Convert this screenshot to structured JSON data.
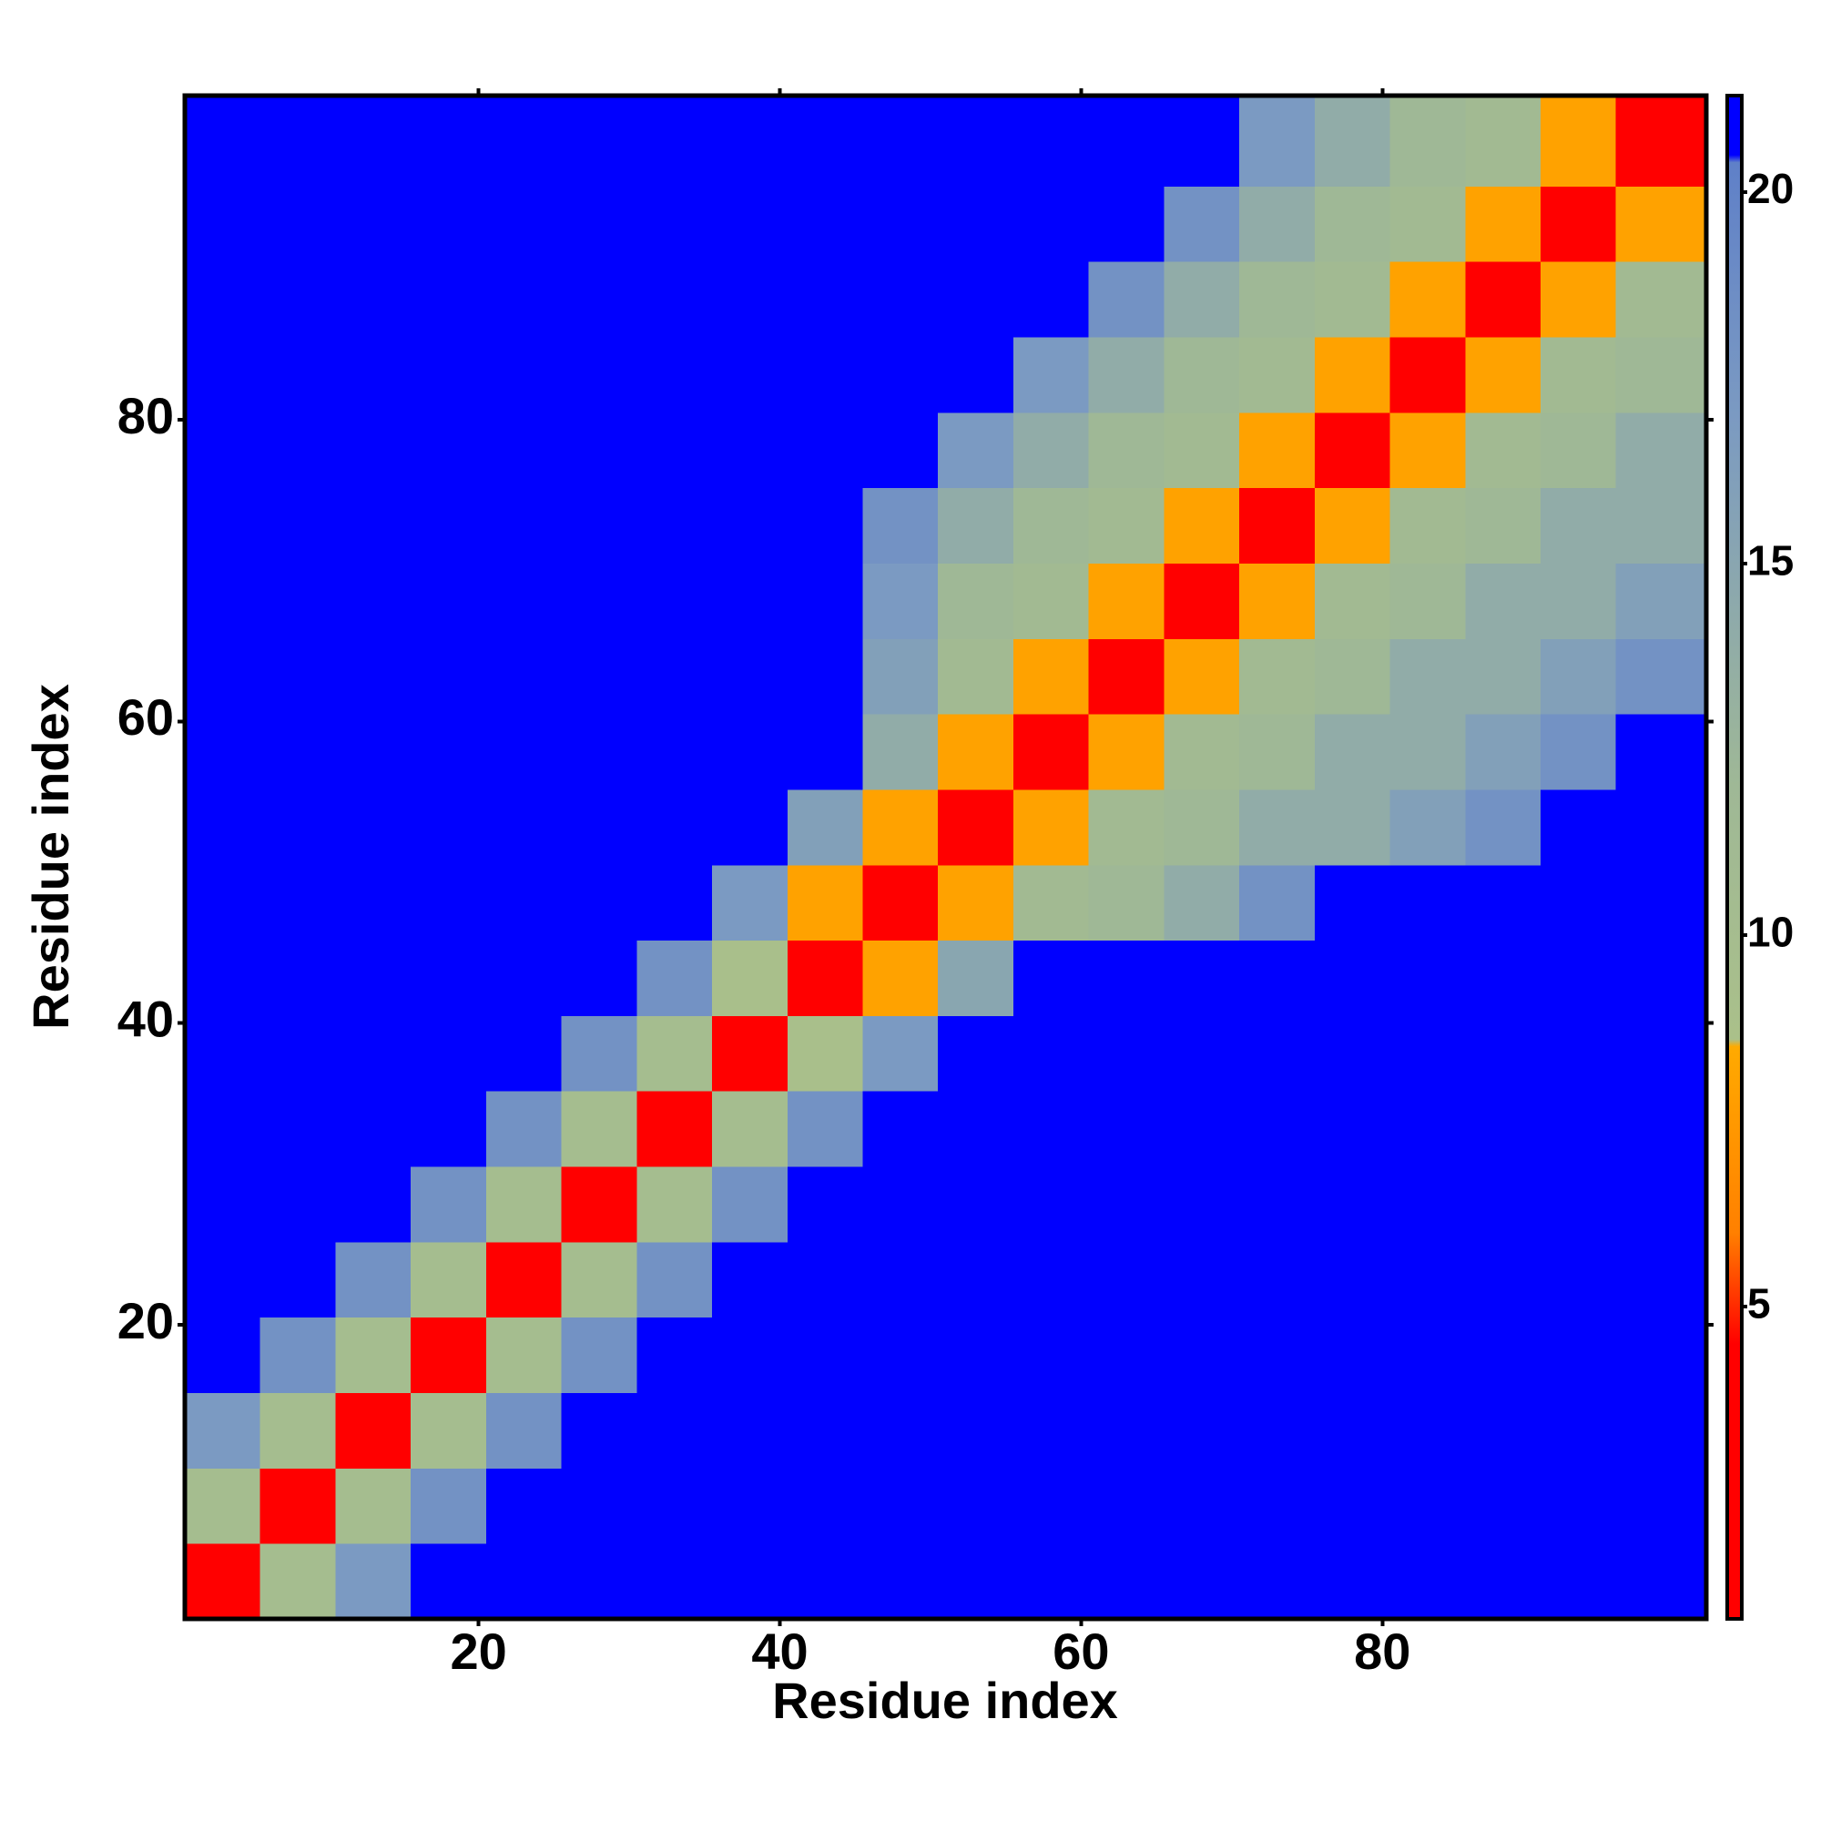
{
  "chart_data": {
    "type": "heatmap",
    "x_label": "Residue index",
    "y_label": "Residue index",
    "xlim": [
      0.5,
      101.5
    ],
    "ylim": [
      0.5,
      101.5
    ],
    "xticks": [
      20,
      40,
      60,
      80
    ],
    "yticks": [
      20,
      40,
      60,
      80
    ],
    "xbins": [
      0.5,
      5.5,
      10.5,
      15.5,
      20.5,
      25.5,
      30.5,
      35.5,
      40.5,
      45.5,
      50.5,
      55.5,
      60.5,
      65.5,
      70.5,
      75.5,
      80.5,
      85.5,
      90.5,
      95.5,
      101.5
    ],
    "ybins": [
      0.5,
      5.5,
      10.5,
      15.5,
      20.5,
      25.5,
      30.5,
      35.5,
      40.5,
      45.5,
      50.5,
      55.5,
      60.5,
      65.5,
      70.5,
      75.5,
      80.5,
      85.5,
      90.5,
      95.5,
      101.5
    ],
    "z": [
      [
        3,
        10,
        17,
        21,
        21,
        21,
        21,
        21,
        21,
        21,
        21,
        21,
        21,
        21,
        21,
        21,
        21,
        21,
        21,
        21
      ],
      [
        10,
        3,
        10,
        18,
        21,
        21,
        21,
        21,
        21,
        21,
        21,
        21,
        21,
        21,
        21,
        21,
        21,
        21,
        21,
        21
      ],
      [
        17,
        10,
        3,
        10,
        18,
        21,
        21,
        21,
        21,
        21,
        21,
        21,
        21,
        21,
        21,
        21,
        21,
        21,
        21,
        21
      ],
      [
        21,
        18,
        10,
        3,
        10,
        18,
        21,
        21,
        21,
        21,
        21,
        21,
        21,
        21,
        21,
        21,
        21,
        21,
        21,
        21
      ],
      [
        21,
        21,
        18,
        10,
        3,
        10,
        18,
        21,
        21,
        21,
        21,
        21,
        21,
        21,
        21,
        21,
        21,
        21,
        21,
        21
      ],
      [
        21,
        21,
        21,
        18,
        10,
        3,
        10,
        18,
        21,
        21,
        21,
        21,
        21,
        21,
        21,
        21,
        21,
        21,
        21,
        21
      ],
      [
        21,
        21,
        21,
        21,
        18,
        10,
        3,
        10,
        18,
        21,
        21,
        21,
        21,
        21,
        21,
        21,
        21,
        21,
        21,
        21
      ],
      [
        21,
        21,
        21,
        21,
        21,
        18,
        10,
        3,
        9,
        17,
        21,
        21,
        21,
        21,
        21,
        21,
        21,
        21,
        21,
        21
      ],
      [
        21,
        21,
        21,
        21,
        21,
        21,
        18,
        9,
        3,
        8,
        15,
        21,
        21,
        21,
        21,
        21,
        21,
        21,
        21,
        21
      ],
      [
        21,
        21,
        21,
        21,
        21,
        21,
        21,
        17,
        8,
        3,
        8,
        11,
        12,
        14,
        18,
        21,
        21,
        21,
        21,
        21
      ],
      [
        21,
        21,
        21,
        21,
        21,
        21,
        21,
        21,
        16,
        8,
        3,
        8,
        11,
        12,
        14,
        14,
        16,
        18,
        21,
        21
      ],
      [
        21,
        21,
        21,
        21,
        21,
        21,
        21,
        21,
        21,
        14,
        8,
        3,
        8,
        11,
        12,
        14,
        14,
        16,
        18,
        21
      ],
      [
        21,
        21,
        21,
        21,
        21,
        21,
        21,
        21,
        21,
        16,
        11,
        8,
        3,
        8,
        11,
        12,
        14,
        14,
        16,
        18
      ],
      [
        21,
        21,
        21,
        21,
        21,
        21,
        21,
        21,
        21,
        17,
        12,
        11,
        8,
        3,
        8,
        11,
        12,
        14,
        14,
        16
      ],
      [
        21,
        21,
        21,
        21,
        21,
        21,
        21,
        21,
        21,
        18,
        14,
        12,
        11,
        8,
        3,
        8,
        11,
        12,
        14,
        14
      ],
      [
        21,
        21,
        21,
        21,
        21,
        21,
        21,
        21,
        21,
        21,
        17,
        14,
        12,
        11,
        8,
        3,
        8,
        11,
        12,
        14
      ],
      [
        21,
        21,
        21,
        21,
        21,
        21,
        21,
        21,
        21,
        21,
        21,
        17,
        14,
        12,
        11,
        8,
        3,
        8,
        11,
        12
      ],
      [
        21,
        21,
        21,
        21,
        21,
        21,
        21,
        21,
        21,
        21,
        21,
        21,
        18,
        14,
        12,
        11,
        8,
        3,
        8,
        11
      ],
      [
        21,
        21,
        21,
        21,
        21,
        21,
        21,
        21,
        21,
        21,
        21,
        21,
        21,
        18,
        14,
        12,
        11,
        8,
        3,
        8
      ],
      [
        21,
        21,
        21,
        21,
        21,
        21,
        21,
        21,
        21,
        21,
        21,
        21,
        21,
        21,
        17,
        14,
        12,
        11,
        8,
        3
      ]
    ],
    "zlim": [
      0.8,
      21.3
    ],
    "zticks": [
      5,
      10,
      15,
      20
    ],
    "colorscale": [
      [
        0.8,
        "#ff0000"
      ],
      [
        4.5,
        "#ff0000"
      ],
      [
        6,
        "#ff8000"
      ],
      [
        8.5,
        "#ffaa00"
      ],
      [
        8.6,
        "#aac08a"
      ],
      [
        12,
        "#9fb896"
      ],
      [
        17,
        "#7b9ac2"
      ],
      [
        20.4,
        "#5f80c8"
      ],
      [
        20.5,
        "#0000ff"
      ],
      [
        21.3,
        "#0000ff"
      ]
    ]
  }
}
